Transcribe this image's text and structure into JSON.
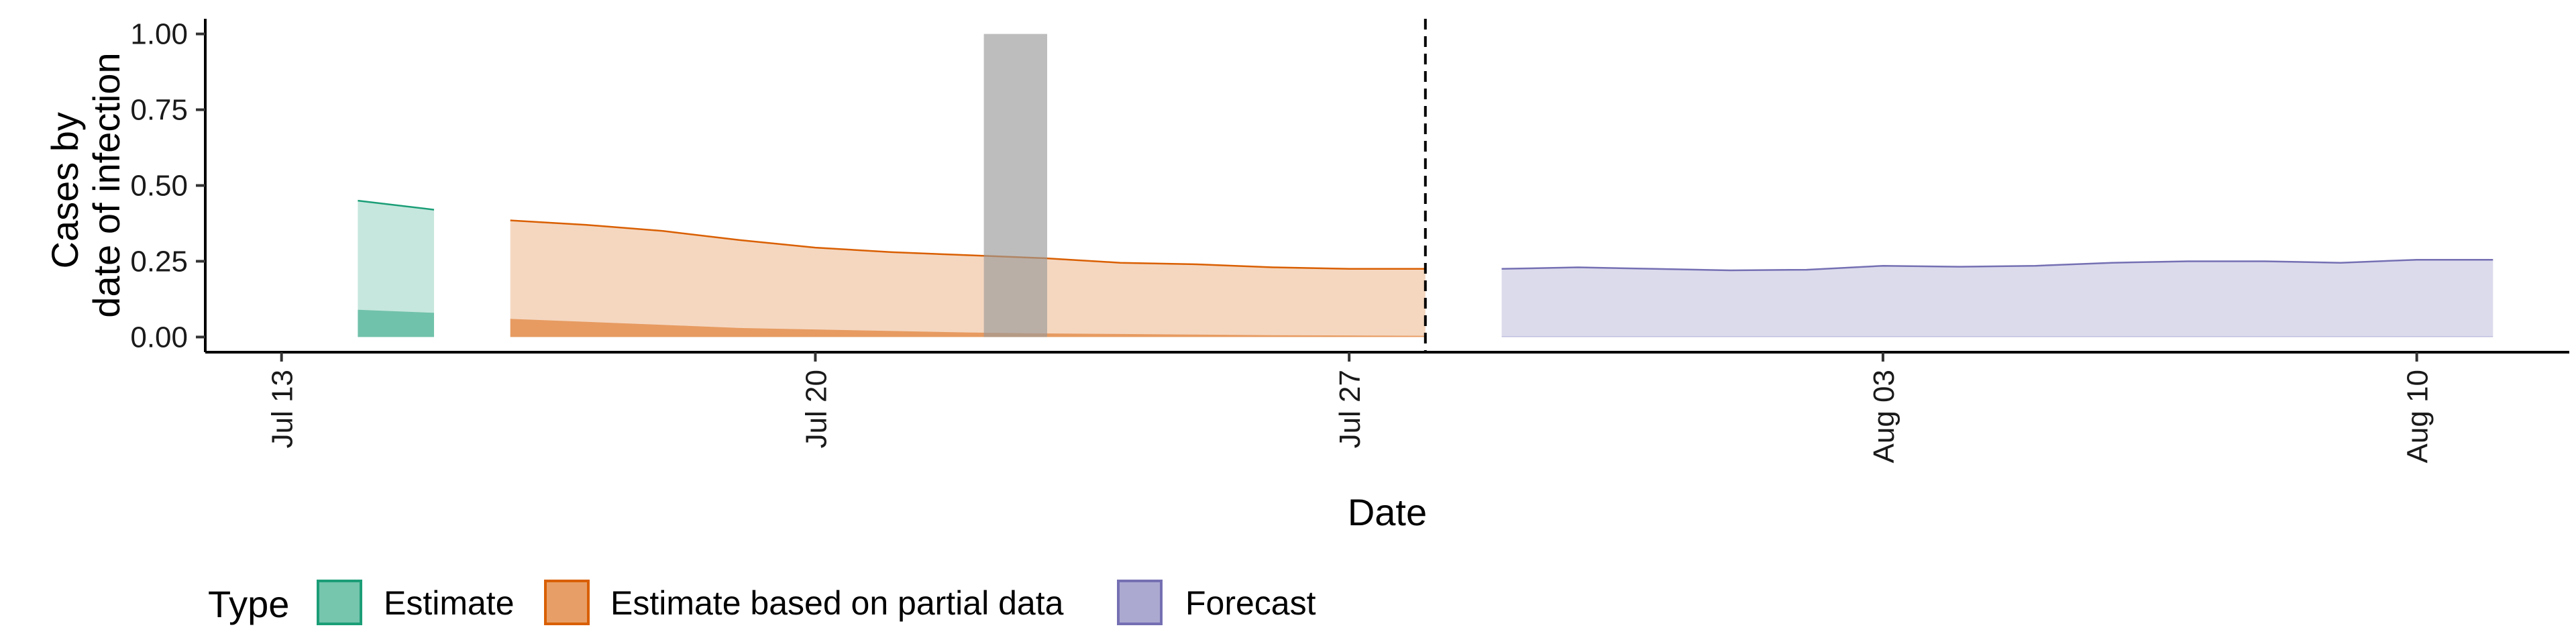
{
  "chart_data": {
    "type": "area",
    "title": "",
    "xlabel": "Date",
    "ylabel": [
      "Cases by",
      "date of infection"
    ],
    "x_ticks": [
      "Jul 13",
      "Jul 20",
      "Jul 27",
      "Aug 03",
      "Aug 10"
    ],
    "y_ticks": [
      "0.00",
      "0.25",
      "0.50",
      "0.75",
      "1.00"
    ],
    "x_range": [
      "2020-07-12",
      "2020-08-12"
    ],
    "ylim": [
      -0.05,
      1.05
    ],
    "grid": false,
    "legend": {
      "position": "bottom-left",
      "title": "Type",
      "entries": [
        "Estimate",
        "Estimate based on partial data",
        "Forecast"
      ]
    },
    "colors": {
      "Estimate": "#1b9e77",
      "Estimate based on partial data": "#d95f02",
      "Forecast": "#7570b3",
      "highlight": "#999999"
    },
    "vertical_line_date": "2020-07-28",
    "highlight_period": {
      "start": "2020-07-22",
      "end": "2020-07-23",
      "ymin": 0,
      "ymax": 1.0
    },
    "series": [
      {
        "name": "Estimate",
        "outer": [
          {
            "x": "2020-07-14",
            "lower": 0,
            "upper": 0.45
          },
          {
            "x": "2020-07-15",
            "lower": 0,
            "upper": 0.42
          }
        ],
        "inner": [
          {
            "x": "2020-07-14",
            "lower": 0,
            "upper": 0.09
          },
          {
            "x": "2020-07-15",
            "lower": 0,
            "upper": 0.08
          }
        ]
      },
      {
        "name": "Estimate based on partial data",
        "outer": [
          {
            "x": "2020-07-16",
            "lower": 0,
            "upper": 0.385
          },
          {
            "x": "2020-07-17",
            "lower": 0,
            "upper": 0.37
          },
          {
            "x": "2020-07-18",
            "lower": 0,
            "upper": 0.35
          },
          {
            "x": "2020-07-19",
            "lower": 0,
            "upper": 0.32
          },
          {
            "x": "2020-07-20",
            "lower": 0,
            "upper": 0.295
          },
          {
            "x": "2020-07-21",
            "lower": 0,
            "upper": 0.28
          },
          {
            "x": "2020-07-22",
            "lower": 0,
            "upper": 0.27
          },
          {
            "x": "2020-07-23",
            "lower": 0,
            "upper": 0.26
          },
          {
            "x": "2020-07-24",
            "lower": 0,
            "upper": 0.245
          },
          {
            "x": "2020-07-25",
            "lower": 0,
            "upper": 0.24
          },
          {
            "x": "2020-07-26",
            "lower": 0,
            "upper": 0.23
          },
          {
            "x": "2020-07-27",
            "lower": 0,
            "upper": 0.225
          },
          {
            "x": "2020-07-28",
            "lower": 0,
            "upper": 0.225
          }
        ],
        "inner": [
          {
            "x": "2020-07-16",
            "lower": 0,
            "upper": 0.06
          },
          {
            "x": "2020-07-17",
            "lower": 0,
            "upper": 0.05
          },
          {
            "x": "2020-07-18",
            "lower": 0,
            "upper": 0.04
          },
          {
            "x": "2020-07-19",
            "lower": 0,
            "upper": 0.03
          },
          {
            "x": "2020-07-20",
            "lower": 0,
            "upper": 0.025
          },
          {
            "x": "2020-07-21",
            "lower": 0,
            "upper": 0.02
          },
          {
            "x": "2020-07-22",
            "lower": 0,
            "upper": 0.015
          },
          {
            "x": "2020-07-23",
            "lower": 0,
            "upper": 0.012
          },
          {
            "x": "2020-07-24",
            "lower": 0,
            "upper": 0.01
          },
          {
            "x": "2020-07-25",
            "lower": 0,
            "upper": 0.008
          },
          {
            "x": "2020-07-26",
            "lower": 0,
            "upper": 0.006
          },
          {
            "x": "2020-07-27",
            "lower": 0,
            "upper": 0.005
          },
          {
            "x": "2020-07-28",
            "lower": 0,
            "upper": 0.004
          }
        ]
      },
      {
        "name": "Forecast",
        "outer": [
          {
            "x": "2020-07-29",
            "lower": 0,
            "upper": 0.225
          },
          {
            "x": "2020-07-30",
            "lower": 0,
            "upper": 0.23
          },
          {
            "x": "2020-07-31",
            "lower": 0,
            "upper": 0.225
          },
          {
            "x": "2020-08-01",
            "lower": 0,
            "upper": 0.22
          },
          {
            "x": "2020-08-02",
            "lower": 0,
            "upper": 0.222
          },
          {
            "x": "2020-08-03",
            "lower": 0,
            "upper": 0.235
          },
          {
            "x": "2020-08-04",
            "lower": 0,
            "upper": 0.232
          },
          {
            "x": "2020-08-05",
            "lower": 0,
            "upper": 0.235
          },
          {
            "x": "2020-08-06",
            "lower": 0,
            "upper": 0.245
          },
          {
            "x": "2020-08-07",
            "lower": 0,
            "upper": 0.25
          },
          {
            "x": "2020-08-08",
            "lower": 0,
            "upper": 0.25
          },
          {
            "x": "2020-08-09",
            "lower": 0,
            "upper": 0.245
          },
          {
            "x": "2020-08-10",
            "lower": 0,
            "upper": 0.255
          },
          {
            "x": "2020-08-11",
            "lower": 0,
            "upper": 0.255
          }
        ],
        "inner": [
          {
            "x": "2020-07-29",
            "lower": 0,
            "upper": 0.002
          },
          {
            "x": "2020-08-11",
            "lower": 0,
            "upper": 0.002
          }
        ]
      }
    ]
  }
}
